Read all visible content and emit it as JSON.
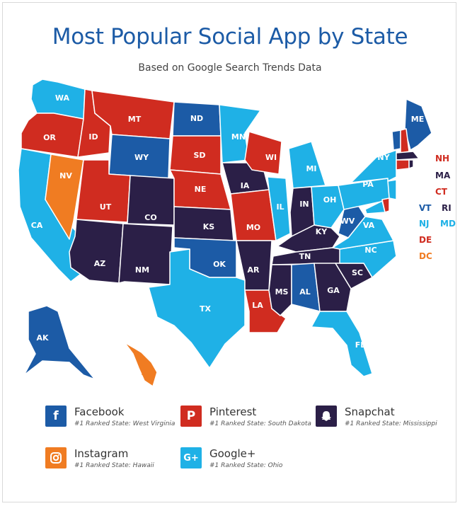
{
  "title": "Most Popular Social App by State",
  "subtitle": "Based on Google Search Trends Data",
  "colors": {
    "facebook": "#1c5ba6",
    "pinterest": "#d02c20",
    "snapchat": "#2b1f47",
    "instagram": "#f07c22",
    "googleplus": "#1fb1e6"
  },
  "states": {
    "WA": "googleplus",
    "OR": "pinterest",
    "CA": "googleplus",
    "NV": "instagram",
    "ID": "pinterest",
    "MT": "pinterest",
    "WY": "facebook",
    "UT": "pinterest",
    "AZ": "snapchat",
    "CO": "snapchat",
    "NM": "snapchat",
    "ND": "facebook",
    "SD": "pinterest",
    "NE": "pinterest",
    "KS": "snapchat",
    "OK": "facebook",
    "TX": "googleplus",
    "MN": "googleplus",
    "IA": "snapchat",
    "MO": "pinterest",
    "AR": "snapchat",
    "LA": "pinterest",
    "WI": "pinterest",
    "IL": "googleplus",
    "MI": "googleplus",
    "IN": "snapchat",
    "OH": "googleplus",
    "KY": "snapchat",
    "TN": "snapchat",
    "MS": "snapchat",
    "AL": "facebook",
    "GA": "snapchat",
    "FL": "googleplus",
    "SC": "snapchat",
    "NC": "googleplus",
    "VA": "googleplus",
    "WV": "facebook",
    "PA": "googleplus",
    "NY": "googleplus",
    "ME": "facebook",
    "AK": "facebook",
    "HI": "instagram"
  },
  "small_states": [
    {
      "abbr": "NH",
      "app": "pinterest"
    },
    {
      "abbr": "MA",
      "app": "snapchat"
    },
    {
      "abbr": "CT",
      "app": "pinterest"
    },
    {
      "abbr": "VT",
      "app": "facebook"
    },
    {
      "abbr": "RI",
      "app": "snapchat"
    },
    {
      "abbr": "NJ",
      "app": "googleplus"
    },
    {
      "abbr": "MD",
      "app": "googleplus"
    },
    {
      "abbr": "DE",
      "app": "pinterest"
    },
    {
      "abbr": "DC",
      "app": "instagram"
    }
  ],
  "legend": [
    {
      "key": "facebook",
      "name": "Facebook",
      "sub": "#1 Ranked State: West Virginia",
      "icon": "f"
    },
    {
      "key": "pinterest",
      "name": "Pinterest",
      "sub": "#1 Ranked State: South Dakota",
      "icon": "P"
    },
    {
      "key": "snapchat",
      "name": "Snapchat",
      "sub": "#1 Ranked State: Mississippi",
      "icon": "ghost"
    },
    {
      "key": "instagram",
      "name": "Instagram",
      "sub": "#1 Ranked State: Hawaii",
      "icon": "camera"
    },
    {
      "key": "googleplus",
      "name": "Google+",
      "sub": "#1 Ranked State: Ohio",
      "icon": "G+"
    }
  ]
}
